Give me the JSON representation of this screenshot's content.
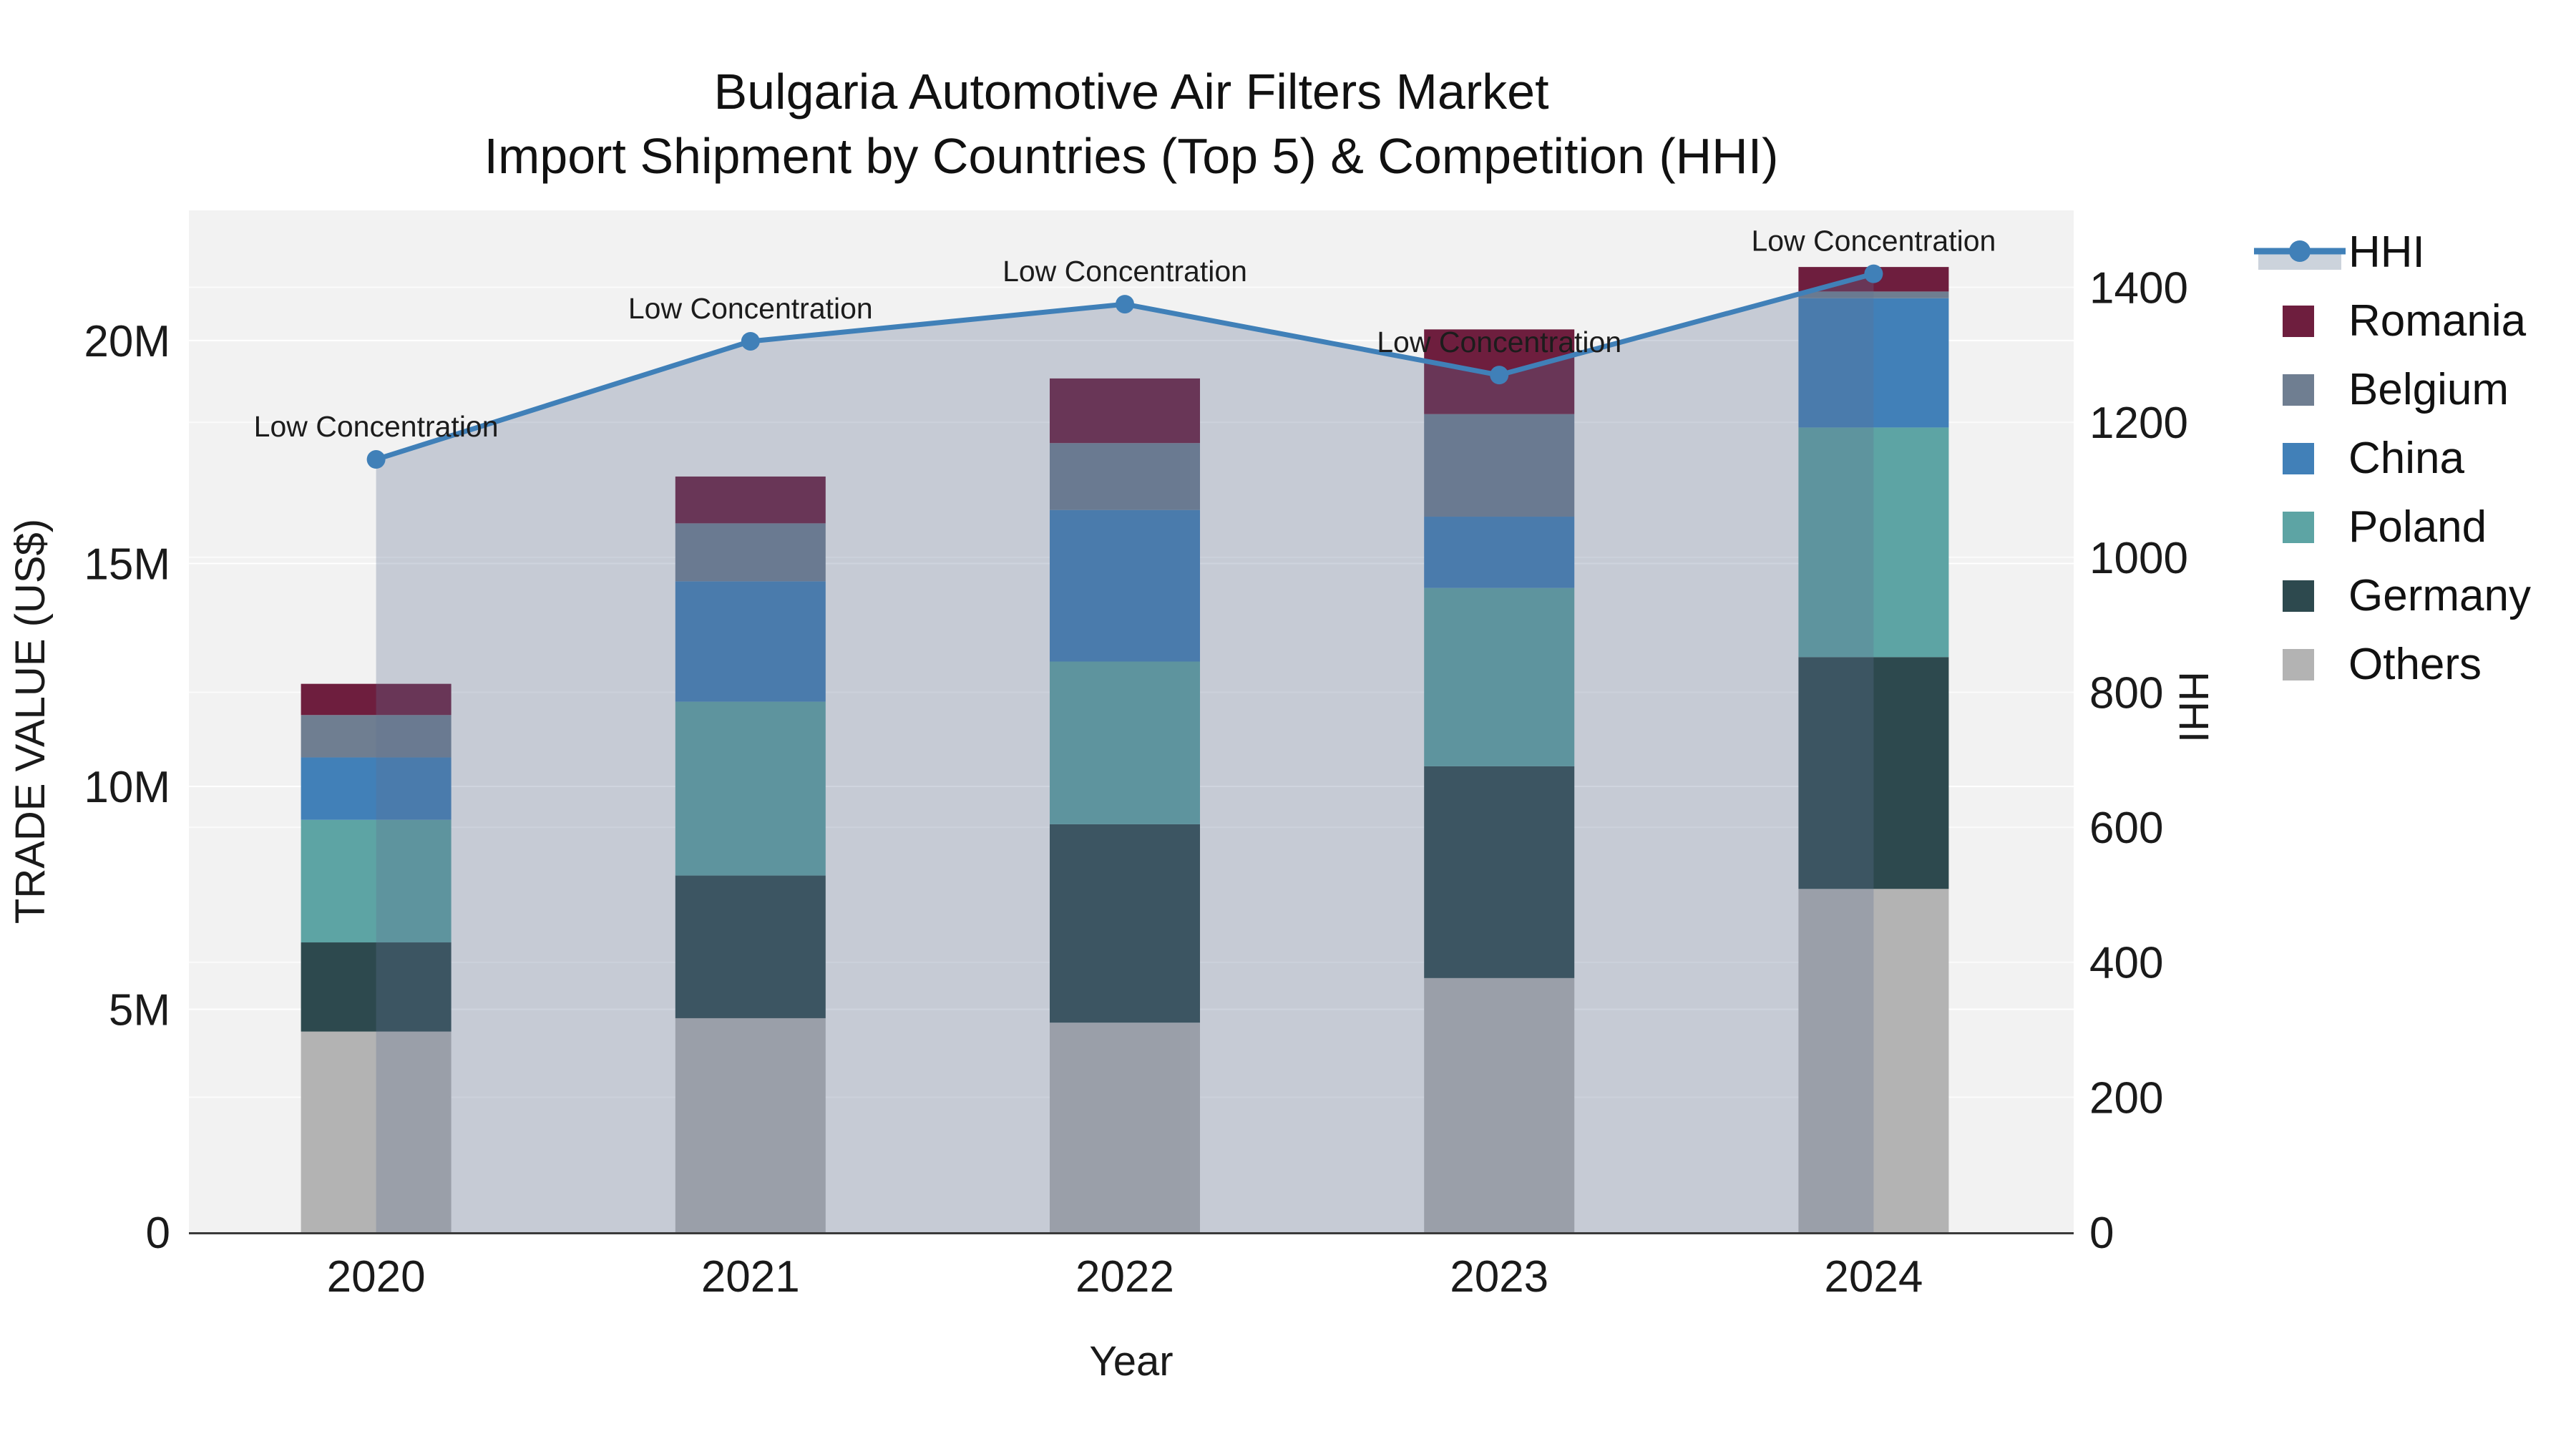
{
  "title": {
    "line1": "Bulgaria Automotive Air Filters Market",
    "line2": "Import Shipment by Countries (Top 5) & Competition (HHI)"
  },
  "colors": {
    "plot_bg": "#f2f2f2",
    "page_bg": "#ffffff",
    "grid": "#ffffff",
    "axis_line": "#3a3a3a",
    "hhi_line": "#4080b8",
    "hhi_fill": "rgba(95,112,145,0.30)",
    "legend_fill_swatch": "#ccd3dc",
    "romania": "#6e1e3e",
    "belgium": "#6f7e91",
    "china": "#4180b8",
    "poland": "#5da4a4",
    "germany": "#2d494e",
    "others": "#b3b3b3"
  },
  "chart_data": {
    "type": "bar+line",
    "title": "Bulgaria Automotive Air Filters Market — Import Shipment by Countries (Top 5) & Competition (HHI)",
    "xlabel": "Year",
    "ylabel": "TRADE VALUE (US$)",
    "y2label": "HHI",
    "categories": [
      "2020",
      "2021",
      "2022",
      "2023",
      "2024"
    ],
    "unit": "million US$",
    "stack_order_bottom_to_top": [
      "Others",
      "Germany",
      "Poland",
      "China",
      "Belgium",
      "Romania"
    ],
    "series": [
      {
        "name": "Others",
        "color_key": "others",
        "values_musd": [
          4.5,
          4.8,
          4.7,
          5.7,
          7.7
        ]
      },
      {
        "name": "Germany",
        "color_key": "germany",
        "values_musd": [
          2.0,
          3.2,
          4.45,
          4.75,
          5.2
        ]
      },
      {
        "name": "Poland",
        "color_key": "poland",
        "values_musd": [
          2.75,
          3.9,
          3.65,
          4.0,
          5.15
        ]
      },
      {
        "name": "China",
        "color_key": "china",
        "values_musd": [
          1.4,
          2.7,
          3.4,
          1.6,
          2.9
        ]
      },
      {
        "name": "Belgium",
        "color_key": "belgium",
        "values_musd": [
          0.95,
          1.3,
          1.5,
          2.3,
          0.15
        ]
      },
      {
        "name": "Romania",
        "color_key": "romania",
        "values_musd": [
          0.7,
          1.05,
          1.45,
          1.9,
          0.55
        ]
      }
    ],
    "bar_totals_musd": [
      12.3,
      16.95,
      19.15,
      20.25,
      21.65
    ],
    "line_series": {
      "name": "HHI",
      "values": [
        1145,
        1320,
        1375,
        1270,
        1420
      ],
      "axis": "right"
    },
    "annotations": [
      "Low Concentration",
      "Low Concentration",
      "Low Concentration",
      "Low Concentration",
      "Low Concentration"
    ],
    "ylim_musd": [
      0,
      22.92
    ],
    "y2lim": [
      0,
      1514
    ],
    "yticks": [
      {
        "v": 0,
        "label": "0"
      },
      {
        "v": 5,
        "label": "5M"
      },
      {
        "v": 10,
        "label": "10M"
      },
      {
        "v": 15,
        "label": "15M"
      },
      {
        "v": 20,
        "label": "20M"
      }
    ],
    "y2ticks": [
      {
        "v": 0,
        "label": "0"
      },
      {
        "v": 200,
        "label": "200"
      },
      {
        "v": 400,
        "label": "400"
      },
      {
        "v": 600,
        "label": "600"
      },
      {
        "v": 800,
        "label": "800"
      },
      {
        "v": 1000,
        "label": "1000"
      },
      {
        "v": 1200,
        "label": "1200"
      },
      {
        "v": 1400,
        "label": "1400"
      }
    ],
    "grid": true,
    "legend_position": "right",
    "legend": [
      {
        "name": "HHI",
        "type": "line",
        "color_key": "hhi_line"
      },
      {
        "name": "Romania",
        "type": "bar",
        "color_key": "romania"
      },
      {
        "name": "Belgium",
        "type": "bar",
        "color_key": "belgium"
      },
      {
        "name": "China",
        "type": "bar",
        "color_key": "china"
      },
      {
        "name": "Poland",
        "type": "bar",
        "color_key": "poland"
      },
      {
        "name": "Germany",
        "type": "bar",
        "color_key": "germany"
      },
      {
        "name": "Others",
        "type": "bar",
        "color_key": "others"
      }
    ]
  }
}
